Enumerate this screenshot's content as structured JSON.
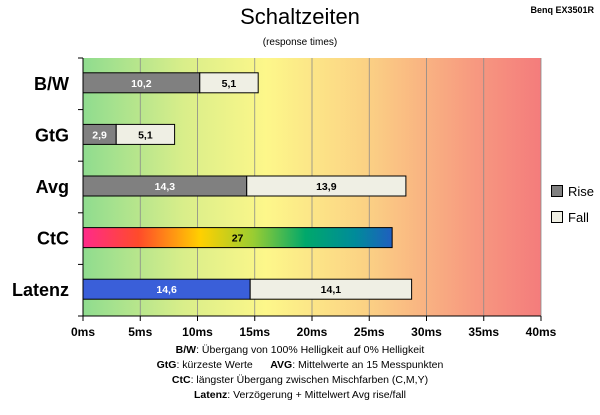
{
  "header": {
    "brand": "Benq EX3501R",
    "title": "Schaltzeiten",
    "subtitle": "(response times)"
  },
  "chart_data": {
    "type": "bar",
    "orientation": "horizontal",
    "stacked": true,
    "title": "Schaltzeiten",
    "subtitle": "(response times)",
    "categories": [
      "B/W",
      "GtG",
      "Avg",
      "CtC",
      "Latenz"
    ],
    "series": [
      {
        "name": "Rise",
        "color": "#808080",
        "values": [
          10.2,
          2.9,
          14.3,
          27,
          14.6
        ],
        "labels": [
          "10,2",
          "2,9",
          "14,3",
          "27",
          "14,6"
        ]
      },
      {
        "name": "Fall",
        "color": "#efefe4",
        "values": [
          5.1,
          5.1,
          13.9,
          null,
          14.1
        ],
        "labels": [
          "5,1",
          "5,1",
          "13,9",
          "",
          "14,1"
        ]
      }
    ],
    "special_fills": {
      "CtC": "rainbow",
      "Latenz": "#3a5fd9"
    },
    "xticks": [
      "0ms",
      "5ms",
      "10ms",
      "15ms",
      "20ms",
      "25ms",
      "30ms",
      "35ms",
      "40ms"
    ],
    "xlim": [
      0,
      40
    ],
    "grid": true,
    "legend_position": "right",
    "background": "green-yellow-red gradient"
  },
  "legend": [
    {
      "label": "Rise",
      "color": "#808080"
    },
    {
      "label": "Fall",
      "color": "#efefe4"
    }
  ],
  "footer": [
    {
      "key": "B/W",
      "text": ":  Übergang von 100% Helligkeit auf 0% Helligkeit"
    },
    {
      "key": "GtG",
      "text": ": kürzeste  Werte",
      "key2": "AVG",
      "text2": ": Mittelwerte  an 15 Messpunkten"
    },
    {
      "key": "CtC",
      "text": ": längster Übergang  zwischen Mischfarben (C,M,Y)"
    },
    {
      "key": "Latenz",
      "text": ": Verzögerung  + Mittelwert Avg rise/fall"
    }
  ]
}
